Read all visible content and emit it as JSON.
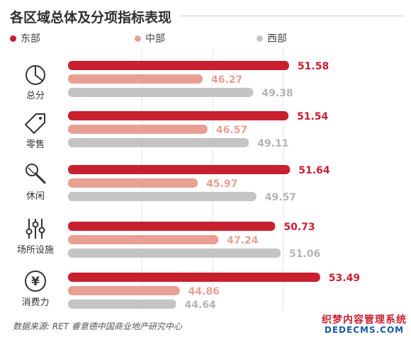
{
  "title": "各区域总体及分项指标表现",
  "legend": [
    {
      "name": "东部",
      "color": "#c8202f"
    },
    {
      "name": "中部",
      "color": "#e8a094"
    },
    {
      "name": "西部",
      "color": "#c4c4c4"
    }
  ],
  "source": "数据来源: RET 睿意德中国商业地产研究中心",
  "watermark": {
    "line1": "织梦内容管理系统",
    "line2": "DEDECMS.COM"
  },
  "icons": [
    "pie-chart-icon",
    "tag-icon",
    "microphone-icon",
    "sliders-icon",
    "yen-icon"
  ],
  "chart_data": {
    "type": "bar",
    "orientation": "horizontal",
    "title": "各区域总体及分项指标表现",
    "categories": [
      "总分",
      "零售",
      "休闲",
      "场所设施",
      "消费力"
    ],
    "series": [
      {
        "name": "东部",
        "color": "#c8202f",
        "values": [
          51.58,
          51.54,
          51.64,
          50.73,
          53.49
        ]
      },
      {
        "name": "中部",
        "color": "#e8a094",
        "values": [
          46.27,
          46.57,
          45.97,
          47.24,
          44.86
        ]
      },
      {
        "name": "西部",
        "color": "#c4c4c4",
        "values": [
          49.38,
          49.11,
          49.57,
          51.06,
          44.64
        ]
      }
    ],
    "xlim": [
      38,
      54.5
    ],
    "grid": true,
    "legend_position": "top-left",
    "data_labels": true
  }
}
